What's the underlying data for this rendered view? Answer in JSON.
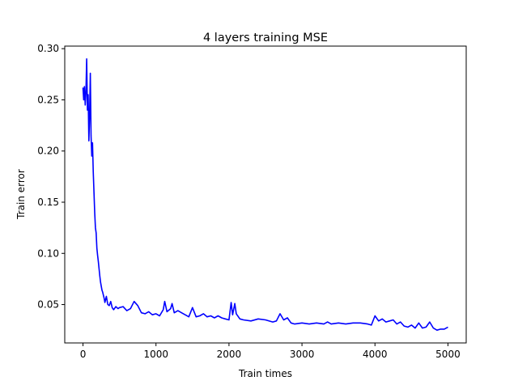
{
  "chart_data": {
    "type": "line",
    "title": "4 layers training MSE",
    "xlabel": "Train times",
    "ylabel": "Train error",
    "xlim": [
      -250,
      5250
    ],
    "ylim": [
      0.0125,
      0.3025
    ],
    "xticks": [
      0,
      1000,
      2000,
      3000,
      4000,
      5000
    ],
    "xtick_labels": [
      "0",
      "1000",
      "2000",
      "3000",
      "4000",
      "5000"
    ],
    "yticks": [
      0.05,
      0.1,
      0.15,
      0.2,
      0.25,
      0.3
    ],
    "ytick_labels": [
      "0.05",
      "0.10",
      "0.15",
      "0.20",
      "0.25",
      "0.30"
    ],
    "grid": false,
    "legend": "none",
    "series": [
      {
        "color": "#0000ff",
        "x": [
          0,
          10,
          20,
          30,
          40,
          50,
          60,
          70,
          80,
          90,
          100,
          110,
          120,
          130,
          140,
          150,
          160,
          170,
          180,
          190,
          200,
          210,
          220,
          230,
          240,
          250,
          260,
          270,
          280,
          290,
          300,
          320,
          340,
          360,
          380,
          400,
          420,
          450,
          480,
          500,
          550,
          600,
          650,
          700,
          750,
          800,
          850,
          900,
          950,
          1000,
          1050,
          1100,
          1120,
          1150,
          1200,
          1220,
          1250,
          1300,
          1350,
          1400,
          1450,
          1500,
          1550,
          1600,
          1650,
          1700,
          1750,
          1800,
          1850,
          1900,
          1950,
          2000,
          2030,
          2050,
          2080,
          2100,
          2150,
          2200,
          2300,
          2400,
          2500,
          2600,
          2650,
          2700,
          2750,
          2800,
          2850,
          2900,
          3000,
          3100,
          3200,
          3300,
          3350,
          3400,
          3500,
          3600,
          3700,
          3800,
          3900,
          3950,
          4000,
          4050,
          4100,
          4150,
          4200,
          4250,
          4300,
          4350,
          4400,
          4450,
          4500,
          4550,
          4600,
          4650,
          4700,
          4750,
          4800,
          4850,
          4900,
          4950,
          5000
        ],
        "y": [
          0.262,
          0.25,
          0.263,
          0.245,
          0.258,
          0.29,
          0.24,
          0.255,
          0.21,
          0.235,
          0.276,
          0.215,
          0.195,
          0.208,
          0.18,
          0.16,
          0.14,
          0.125,
          0.12,
          0.105,
          0.098,
          0.092,
          0.085,
          0.078,
          0.072,
          0.068,
          0.064,
          0.062,
          0.059,
          0.056,
          0.052,
          0.058,
          0.05,
          0.049,
          0.053,
          0.047,
          0.045,
          0.048,
          0.046,
          0.047,
          0.048,
          0.044,
          0.046,
          0.053,
          0.049,
          0.042,
          0.041,
          0.043,
          0.04,
          0.041,
          0.039,
          0.045,
          0.053,
          0.043,
          0.046,
          0.051,
          0.042,
          0.044,
          0.042,
          0.04,
          0.038,
          0.047,
          0.038,
          0.039,
          0.041,
          0.038,
          0.039,
          0.037,
          0.039,
          0.037,
          0.036,
          0.035,
          0.052,
          0.04,
          0.051,
          0.041,
          0.036,
          0.035,
          0.034,
          0.036,
          0.035,
          0.033,
          0.034,
          0.041,
          0.035,
          0.037,
          0.032,
          0.031,
          0.032,
          0.031,
          0.032,
          0.031,
          0.033,
          0.031,
          0.032,
          0.031,
          0.032,
          0.032,
          0.031,
          0.03,
          0.039,
          0.034,
          0.036,
          0.033,
          0.034,
          0.035,
          0.031,
          0.033,
          0.029,
          0.028,
          0.03,
          0.027,
          0.032,
          0.027,
          0.028,
          0.033,
          0.027,
          0.025,
          0.026,
          0.026,
          0.028
        ]
      }
    ]
  }
}
